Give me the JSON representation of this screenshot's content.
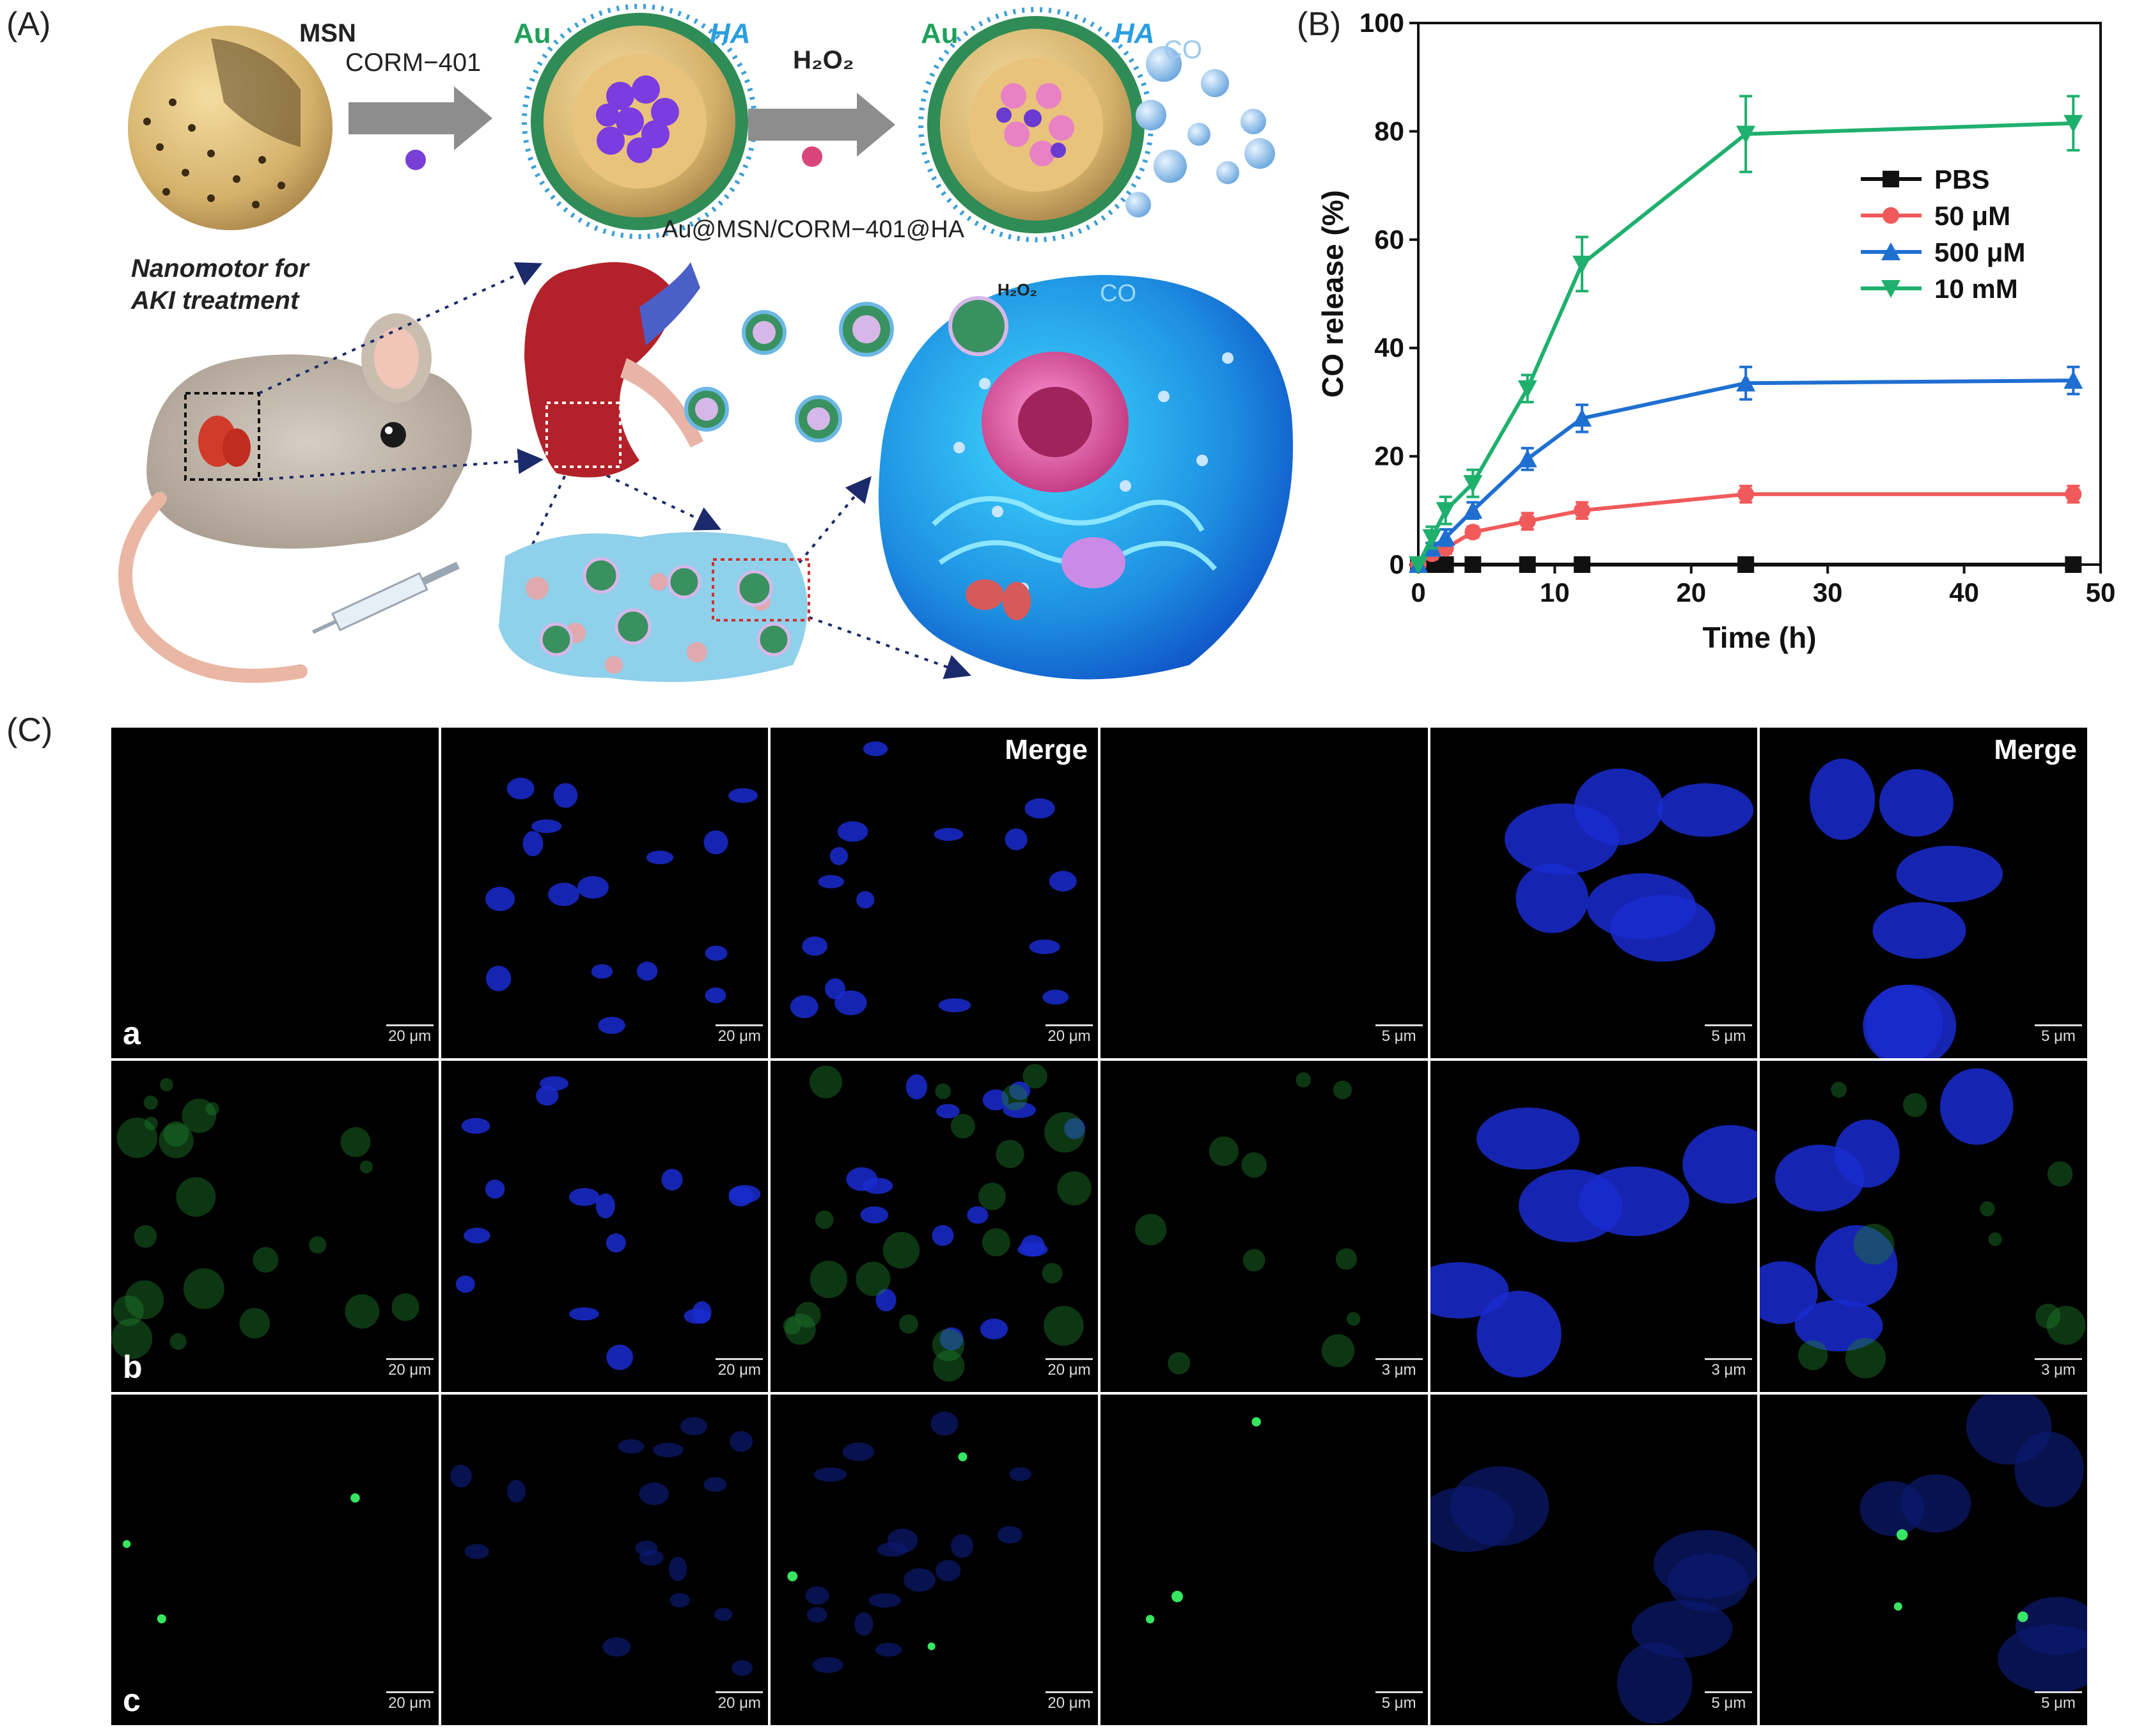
{
  "panels": {
    "a_label": "(A)",
    "b_label": "(B)",
    "c_label": "(C)"
  },
  "schematic": {
    "msn": "MSN",
    "corm": "CORM−401",
    "au1": "Au",
    "ha1": "HA",
    "h2o2": "H₂O₂",
    "au2": "Au",
    "ha2": "HA",
    "co": "CO",
    "particle_name": "Au@MSN/CORM−401@HA",
    "nanomotor_line1": "Nanomotor for",
    "nanomotor_line2": "AKI treatment",
    "h2o2_cell": "H₂O₂",
    "co_cell": "CO"
  },
  "chart_data": {
    "type": "line",
    "title": "",
    "xlabel": "Time (h)",
    "ylabel": "CO release (%)",
    "xlim": [
      0,
      50
    ],
    "ylim": [
      0,
      100
    ],
    "xticks": [
      0,
      10,
      20,
      30,
      40,
      50
    ],
    "yticks": [
      0,
      20,
      40,
      60,
      80,
      100
    ],
    "legend_position": "right-center",
    "x": [
      0,
      1,
      2,
      4,
      8,
      12,
      24,
      48
    ],
    "series": [
      {
        "name": "PBS",
        "color": "#111111",
        "marker": "square",
        "values": [
          0,
          0,
          0,
          0,
          0,
          0,
          0,
          0
        ],
        "errors": [
          0,
          0,
          0,
          0,
          0,
          0,
          1,
          1
        ]
      },
      {
        "name": "50 μM",
        "color": "#f05a5a",
        "marker": "circle",
        "values": [
          0,
          2,
          3,
          6,
          8,
          10,
          13,
          13
        ],
        "errors": [
          0,
          1,
          1,
          1,
          1.5,
          1.5,
          1.5,
          1.5
        ]
      },
      {
        "name": "500 μM",
        "color": "#1f6fd1",
        "marker": "triangle-up",
        "values": [
          0,
          3,
          5,
          10,
          19.5,
          27,
          33.5,
          34
        ],
        "errors": [
          0,
          1,
          1.5,
          1.5,
          2,
          2.5,
          3,
          2.5
        ]
      },
      {
        "name": "10 mM",
        "color": "#1fb06e",
        "marker": "triangle-down",
        "values": [
          0,
          5,
          10,
          15,
          32.5,
          55.5,
          79.5,
          81.5
        ],
        "errors": [
          0,
          2,
          2.5,
          2.5,
          2.5,
          5,
          7,
          5
        ]
      }
    ]
  },
  "microscopy": {
    "merge_label": "Merge",
    "rows": [
      {
        "letter": "a",
        "scales": [
          "20 μm",
          "20 μm",
          "20 μm",
          "5 μm",
          "5 μm",
          "5 μm"
        ]
      },
      {
        "letter": "b",
        "scales": [
          "20 μm",
          "20 μm",
          "20 μm",
          "3 μm",
          "3 μm",
          "3 μm"
        ]
      },
      {
        "letter": "c",
        "scales": [
          "20 μm",
          "20 μm",
          "20 μm",
          "5 μm",
          "5 μm",
          "5 μm"
        ]
      }
    ]
  }
}
